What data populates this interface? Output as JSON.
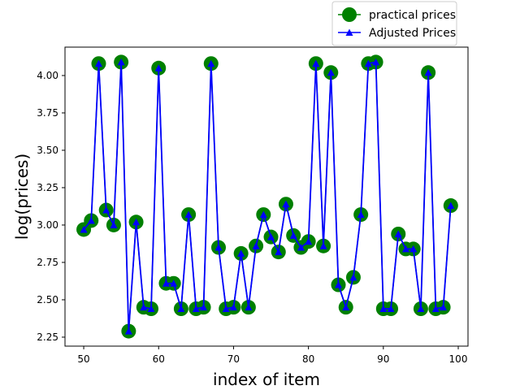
{
  "chart_data": {
    "type": "line",
    "xlabel": "index of item",
    "ylabel": "log(prices)",
    "xlim": [
      47.5,
      101.3
    ],
    "ylim": [
      2.19,
      4.19
    ],
    "x_ticks": [
      50,
      60,
      70,
      80,
      90,
      100
    ],
    "y_ticks": [
      2.25,
      2.5,
      2.75,
      3.0,
      3.25,
      3.5,
      3.75,
      4.0
    ],
    "y_tick_labels": [
      "2.25",
      "2.50",
      "2.75",
      "3.00",
      "3.25",
      "3.50",
      "3.75",
      "4.00"
    ],
    "grid": false,
    "legend_position": "top-right",
    "x": [
      50,
      51,
      52,
      53,
      54,
      55,
      56,
      57,
      58,
      59,
      60,
      61,
      62,
      63,
      64,
      65,
      66,
      67,
      68,
      69,
      70,
      71,
      72,
      73,
      74,
      75,
      76,
      77,
      78,
      79,
      80,
      81,
      82,
      83,
      84,
      85,
      86,
      87,
      88,
      89,
      90,
      91,
      92,
      93,
      94,
      95,
      96,
      97,
      98,
      99
    ],
    "series": [
      {
        "name": "practical prices",
        "color": "#008000",
        "marker": "circle",
        "values": [
          2.97,
          3.03,
          4.08,
          3.1,
          3.0,
          4.09,
          2.29,
          3.02,
          2.45,
          2.44,
          4.05,
          2.61,
          2.61,
          2.44,
          3.07,
          2.44,
          2.45,
          4.08,
          2.85,
          2.44,
          2.45,
          2.81,
          2.45,
          2.86,
          3.07,
          2.92,
          2.82,
          3.14,
          2.93,
          2.85,
          2.89,
          4.08,
          2.86,
          4.02,
          2.6,
          2.45,
          2.65,
          3.07,
          4.08,
          4.09,
          2.44,
          2.44,
          2.94,
          2.84,
          2.84,
          2.44,
          4.02,
          2.44,
          2.45,
          3.13
        ]
      },
      {
        "name": "Adjusted Prices",
        "color": "#0000ff",
        "marker": "triangle",
        "values": [
          2.97,
          3.03,
          4.08,
          3.1,
          3.0,
          4.09,
          2.29,
          3.02,
          2.45,
          2.44,
          4.05,
          2.61,
          2.61,
          2.44,
          3.07,
          2.44,
          2.45,
          4.08,
          2.85,
          2.44,
          2.45,
          2.81,
          2.45,
          2.86,
          3.07,
          2.92,
          2.82,
          3.14,
          2.93,
          2.85,
          2.89,
          4.08,
          2.86,
          4.02,
          2.6,
          2.45,
          2.65,
          3.07,
          4.08,
          4.09,
          2.44,
          2.44,
          2.94,
          2.84,
          2.84,
          2.44,
          4.02,
          2.44,
          2.45,
          3.13
        ]
      }
    ]
  }
}
